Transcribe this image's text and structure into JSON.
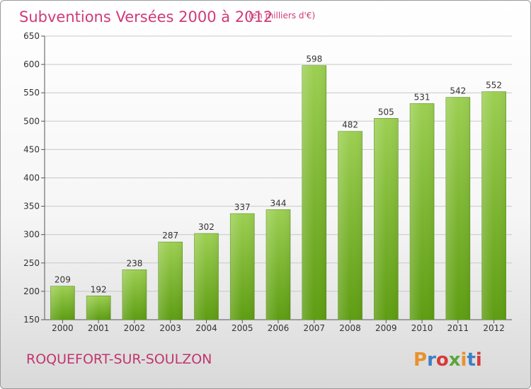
{
  "header": {
    "title": "Subventions Versées 2000 à 2012",
    "subtitle": "(en milliers d'€)"
  },
  "footer": {
    "commune": "ROQUEFORT-SUR-SOULZON",
    "logo": "Proxiti",
    "logo_colors": [
      "#e8912b",
      "#3d7fc4",
      "#d63a3a",
      "#5aa63a",
      "#e8912b",
      "#3d7fc4",
      "#d63a3a"
    ]
  },
  "colors": {
    "accent": "#d03a78",
    "bar_top": "#9ccf52",
    "bar_bottom": "#5e9d12"
  },
  "chart_data": {
    "type": "bar",
    "categories": [
      "2000",
      "2001",
      "2002",
      "2003",
      "2004",
      "2005",
      "2006",
      "2007",
      "2008",
      "2009",
      "2010",
      "2011",
      "2012"
    ],
    "values": [
      209,
      192,
      238,
      287,
      302,
      337,
      344,
      598,
      482,
      505,
      531,
      542,
      552
    ],
    "ylim": [
      150,
      650
    ],
    "yticks": [
      150,
      200,
      250,
      300,
      350,
      400,
      450,
      500,
      550,
      600,
      650
    ],
    "grid": true,
    "legend": "none"
  }
}
